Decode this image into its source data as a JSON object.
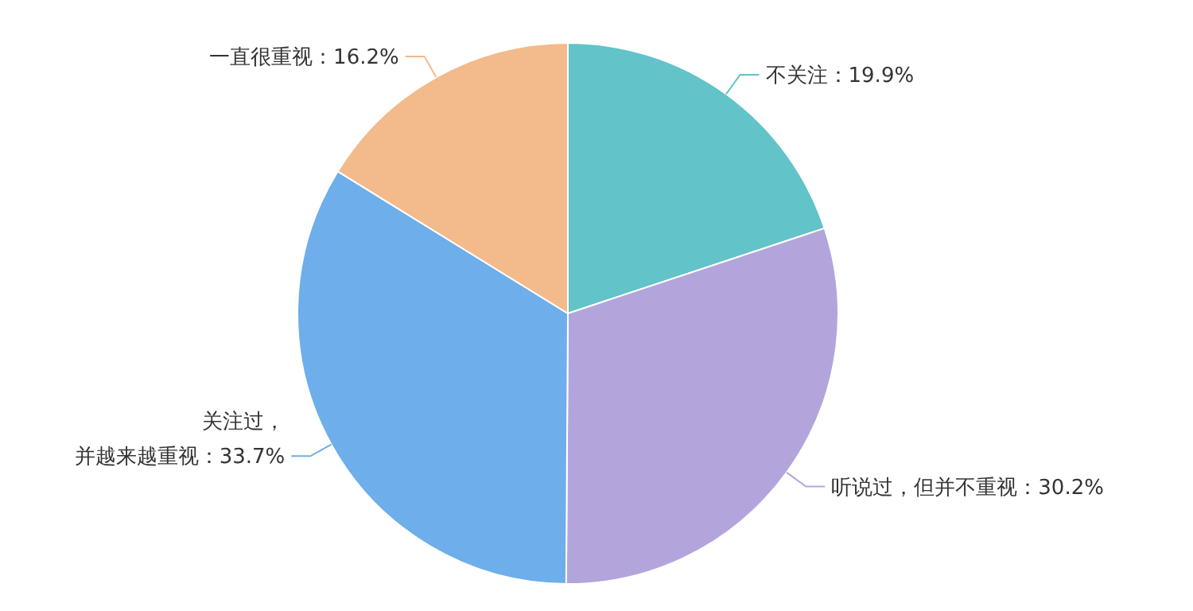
{
  "chart_data": {
    "type": "pie",
    "categories": [
      "不关注",
      "听说过，但并不重视",
      "关注过，并越来越重视",
      "一直很重视"
    ],
    "values": [
      19.9,
      30.2,
      33.7,
      16.2
    ],
    "value_labels": [
      "：19.9%",
      "：30.2%",
      "：33.7%",
      "：16.2%"
    ],
    "colors": [
      "#62c3c8",
      "#b3a5dc",
      "#6eaeea",
      "#f3ba8b"
    ]
  }
}
